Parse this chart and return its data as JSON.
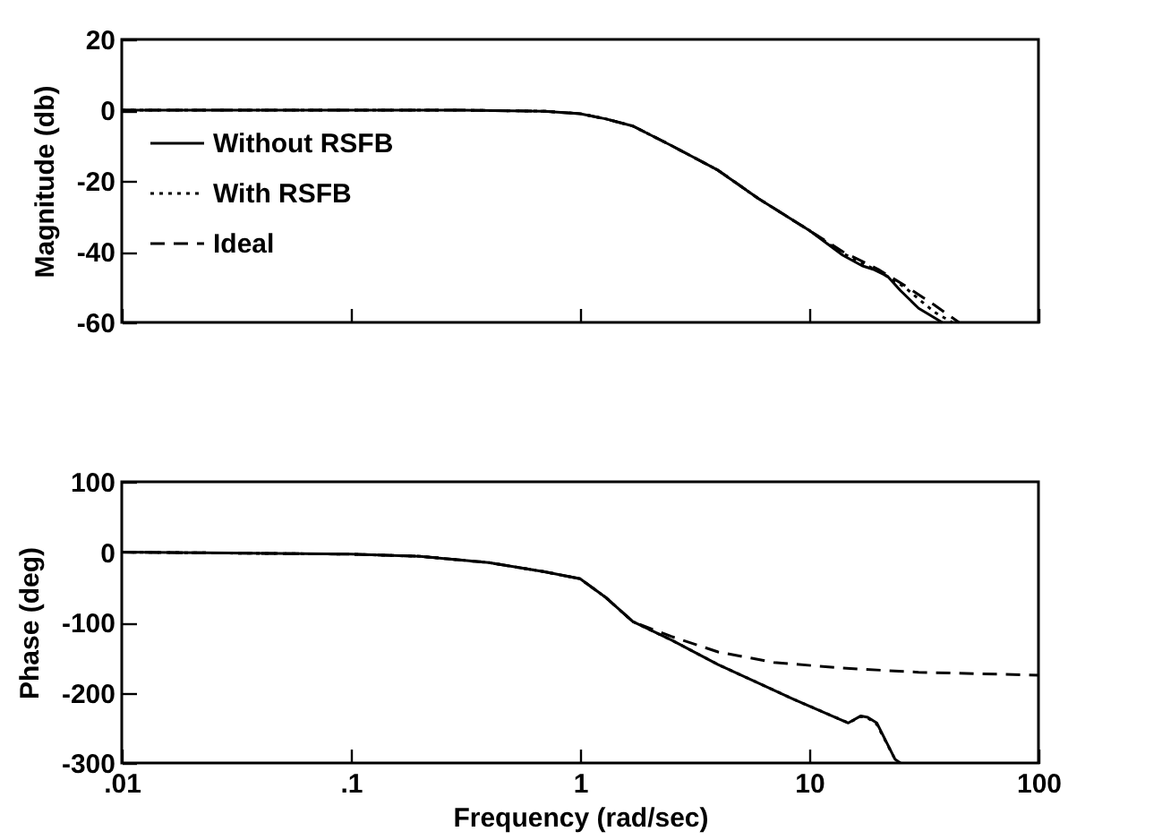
{
  "chart_data": [
    {
      "type": "line",
      "ylabel": "Magnitude (db)",
      "log": "x",
      "xlim": [
        0.01,
        100
      ],
      "ylim": [
        -60,
        20
      ],
      "yticks": [
        -60,
        -40,
        -20,
        0,
        20
      ],
      "xticks": [
        {
          "value": 0.01,
          "label": null
        },
        {
          "value": 0.1,
          "label": null
        },
        {
          "value": 1,
          "label": null
        },
        {
          "value": 10,
          "label": null
        },
        {
          "value": 100,
          "label": null
        }
      ],
      "tick_labels": "y",
      "legend": "left",
      "grid": false,
      "series": [
        {
          "name": "Without RSFB",
          "color": "#000000",
          "line_style": "solid",
          "x": [
            0.01,
            0.1,
            0.3,
            0.7,
            1,
            1.3,
            1.7,
            2.5,
            4,
            6,
            10,
            14,
            17,
            19,
            22,
            25,
            30,
            38
          ],
          "values": [
            0,
            0,
            0,
            -0.3,
            -1,
            -2.5,
            -4.5,
            -10,
            -17,
            -25,
            -34,
            -41,
            -44,
            -45,
            -47,
            -51,
            -56,
            -60
          ]
        },
        {
          "name": "With RSFB",
          "color": "#000000",
          "line_style": "dotted",
          "x": [
            0.01,
            0.1,
            0.3,
            0.7,
            1,
            1.3,
            1.7,
            2.5,
            4,
            6,
            10,
            14,
            20,
            26,
            35,
            42
          ],
          "values": [
            0,
            0,
            0,
            -0.3,
            -1,
            -2.5,
            -4.5,
            -10,
            -17,
            -25,
            -34,
            -40.5,
            -45.5,
            -50,
            -57,
            -60
          ]
        },
        {
          "name": "Ideal",
          "color": "#000000",
          "line_style": "dashed",
          "x": [
            0.01,
            0.1,
            0.3,
            0.7,
            1,
            1.3,
            1.7,
            2.5,
            4,
            6,
            10,
            14,
            20,
            26,
            35,
            45
          ],
          "values": [
            0,
            0,
            0,
            -0.3,
            -1,
            -2.5,
            -4.5,
            -10,
            -17,
            -25,
            -34,
            -40,
            -45,
            -49.5,
            -55,
            -60
          ]
        }
      ]
    },
    {
      "type": "line",
      "xlabel": "Frequency (rad/sec)",
      "ylabel": "Phase (deg)",
      "log": "x",
      "xlim": [
        0.01,
        100
      ],
      "ylim": [
        -300,
        100
      ],
      "yticks": [
        -300,
        -200,
        -100,
        0,
        100
      ],
      "xticks": [
        {
          "value": 0.01,
          "label": ".01"
        },
        {
          "value": 0.1,
          "label": ".1"
        },
        {
          "value": 1,
          "label": "1"
        },
        {
          "value": 10,
          "label": "10"
        },
        {
          "value": 100,
          "label": "100"
        }
      ],
      "grid": false,
      "series": [
        {
          "color": "#000000",
          "line_style": "solid",
          "x": [
            0.01,
            0.1,
            0.2,
            0.4,
            0.7,
            1,
            1.3,
            1.7,
            2.5,
            4,
            8.5,
            14.8,
            16.8,
            18,
            19.7,
            23.7,
            25
          ],
          "values": [
            0,
            -3,
            -6,
            -15,
            -28,
            -38,
            -65,
            -99,
            -125,
            -160,
            -209,
            -243,
            -233,
            -235,
            -243,
            -295,
            -300
          ]
        },
        {
          "color": "#000000",
          "line_style": "dotted",
          "x": [
            0.01,
            0.1,
            0.2,
            0.4,
            0.7,
            1,
            1.3,
            1.7,
            2.5,
            4,
            8.5,
            14.8,
            16.8,
            18,
            19.7,
            23.7,
            24.5
          ],
          "values": [
            0,
            -3,
            -6,
            -15,
            -28,
            -38,
            -65,
            -99,
            -125,
            -160,
            -209,
            -243,
            -234,
            -236,
            -245,
            -295,
            -300
          ]
        },
        {
          "color": "#000000",
          "line_style": "dashed",
          "x": [
            0.01,
            0.1,
            0.2,
            0.4,
            0.7,
            1,
            1.3,
            1.7,
            2.5,
            4,
            7,
            14,
            30,
            100
          ],
          "values": [
            0,
            -3,
            -6,
            -15,
            -28,
            -38,
            -65,
            -99,
            -120,
            -142,
            -157,
            -165,
            -171,
            -175
          ]
        }
      ]
    }
  ]
}
